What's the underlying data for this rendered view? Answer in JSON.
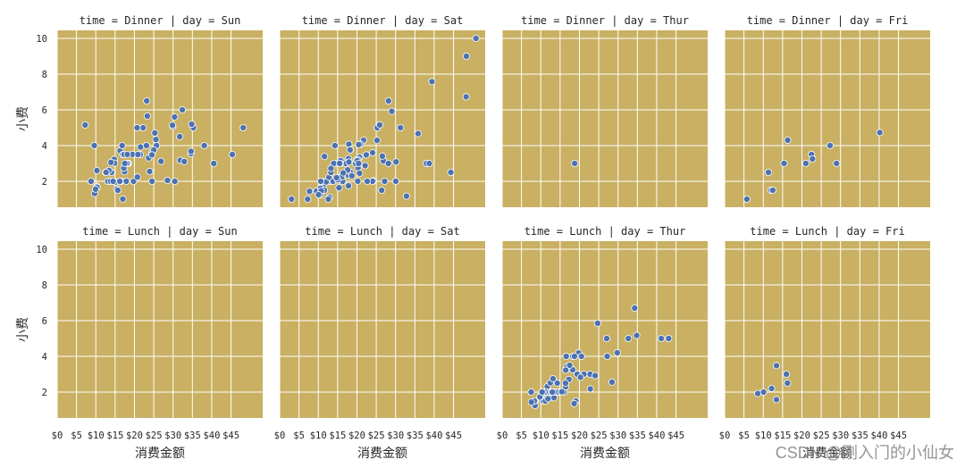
{
  "watermark": "CSDN @刚入门的小仙女",
  "chart_data": {
    "type": "scatter",
    "xlabel": "消费金额",
    "ylabel": "小费",
    "xlim": [
      0,
      53.2
    ],
    "ylim": [
      0.55,
      10.45
    ],
    "xticks": [
      0,
      5,
      10,
      15,
      20,
      25,
      30,
      35,
      40,
      45
    ],
    "xtick_labels": [
      "$0",
      "$5",
      "$10",
      "$15",
      "$20",
      "$25",
      "$30",
      "$35",
      "$40",
      "$45"
    ],
    "yticks": [
      2,
      4,
      6,
      8,
      10
    ],
    "grid": true,
    "colors": {
      "panel": "#c9b062",
      "grid": "#ffffff",
      "point": "#4c72b0",
      "point_edge": "#ffffff"
    },
    "facet_rows": [
      [
        {
          "title": "time = Dinner | day = Sun",
          "points": [
            [
              16.99,
              1.01
            ],
            [
              10.34,
              1.66
            ],
            [
              21.01,
              3.5
            ],
            [
              23.68,
              3.31
            ],
            [
              24.59,
              3.61
            ],
            [
              25.29,
              4.71
            ],
            [
              8.77,
              2.0
            ],
            [
              26.88,
              3.12
            ],
            [
              15.04,
              1.96
            ],
            [
              14.78,
              3.23
            ],
            [
              10.27,
              1.71
            ],
            [
              35.26,
              5.0
            ],
            [
              15.42,
              1.57
            ],
            [
              18.43,
              3.0
            ],
            [
              14.83,
              3.02
            ],
            [
              21.58,
              3.92
            ],
            [
              10.33,
              1.67
            ],
            [
              16.29,
              3.71
            ],
            [
              16.97,
              3.5
            ],
            [
              17.46,
              2.54
            ],
            [
              13.94,
              3.06
            ],
            [
              9.68,
              1.32
            ],
            [
              30.4,
              5.6
            ],
            [
              18.29,
              3.0
            ],
            [
              22.23,
              5.0
            ],
            [
              32.4,
              6.0
            ],
            [
              28.55,
              2.05
            ],
            [
              18.04,
              3.0
            ],
            [
              12.54,
              2.5
            ],
            [
              10.29,
              2.6
            ],
            [
              34.81,
              5.2
            ],
            [
              9.94,
              1.56
            ],
            [
              25.56,
              4.34
            ],
            [
              19.49,
              3.51
            ],
            [
              38.07,
              4.0
            ],
            [
              23.95,
              2.55
            ],
            [
              25.71,
              4.0
            ],
            [
              17.31,
              3.5
            ],
            [
              29.93,
              5.07
            ],
            [
              14.07,
              2.5
            ],
            [
              13.13,
              2.0
            ],
            [
              17.26,
              2.74
            ],
            [
              24.55,
              2.0
            ],
            [
              19.77,
              2.0
            ],
            [
              29.85,
              5.14
            ],
            [
              48.17,
              5.0
            ],
            [
              25.0,
              3.75
            ],
            [
              13.39,
              2.61
            ],
            [
              16.49,
              2.0
            ],
            [
              21.5,
              3.5
            ],
            [
              12.66,
              2.5
            ],
            [
              16.21,
              2.0
            ],
            [
              13.81,
              2.0
            ],
            [
              17.51,
              3.0
            ],
            [
              24.52,
              3.48
            ],
            [
              20.76,
              2.24
            ],
            [
              31.71,
              4.5
            ],
            [
              7.25,
              5.15
            ],
            [
              31.85,
              3.18
            ],
            [
              16.82,
              4.0
            ],
            [
              32.9,
              3.11
            ],
            [
              17.89,
              2.0
            ],
            [
              14.48,
              2.0
            ],
            [
              9.6,
              4.0
            ],
            [
              34.63,
              3.55
            ],
            [
              34.65,
              3.68
            ],
            [
              23.33,
              5.65
            ],
            [
              45.35,
              3.5
            ],
            [
              23.17,
              6.5
            ],
            [
              40.55,
              3.0
            ],
            [
              20.69,
              5.0
            ],
            [
              20.9,
              3.5
            ],
            [
              30.46,
              2.0
            ],
            [
              18.15,
              3.5
            ],
            [
              23.1,
              4.0
            ],
            [
              15.69,
              1.5
            ]
          ]
        },
        {
          "title": "time = Dinner | day = Sat",
          "points": [
            [
              20.65,
              3.35
            ],
            [
              17.92,
              4.08
            ],
            [
              20.29,
              2.75
            ],
            [
              15.77,
              2.23
            ],
            [
              39.42,
              7.58
            ],
            [
              19.82,
              3.18
            ],
            [
              17.81,
              2.34
            ],
            [
              13.37,
              2.0
            ],
            [
              12.69,
              2.0
            ],
            [
              21.7,
              4.3
            ],
            [
              19.65,
              3.0
            ],
            [
              9.55,
              1.45
            ],
            [
              18.35,
              2.5
            ],
            [
              15.06,
              3.0
            ],
            [
              20.69,
              2.45
            ],
            [
              17.78,
              3.27
            ],
            [
              24.06,
              3.6
            ],
            [
              16.31,
              2.0
            ],
            [
              16.93,
              3.07
            ],
            [
              18.69,
              2.31
            ],
            [
              31.27,
              5.0
            ],
            [
              16.04,
              2.24
            ],
            [
              38.01,
              3.0
            ],
            [
              26.41,
              1.5
            ],
            [
              11.24,
              1.76
            ],
            [
              48.27,
              6.73
            ],
            [
              20.29,
              3.21
            ],
            [
              13.81,
              2.0
            ],
            [
              11.02,
              1.98
            ],
            [
              18.29,
              3.76
            ],
            [
              17.59,
              2.64
            ],
            [
              20.08,
              3.15
            ],
            [
              16.45,
              2.47
            ],
            [
              3.07,
              1.0
            ],
            [
              20.23,
              2.01
            ],
            [
              15.01,
              2.09
            ],
            [
              12.02,
              1.97
            ],
            [
              17.07,
              3.0
            ],
            [
              26.86,
              3.14
            ],
            [
              25.28,
              5.0
            ],
            [
              14.73,
              2.2
            ],
            [
              10.51,
              1.25
            ],
            [
              17.92,
              3.08
            ],
            [
              44.3,
              2.5
            ],
            [
              22.42,
              3.48
            ],
            [
              20.92,
              4.08
            ],
            [
              15.36,
              1.64
            ],
            [
              20.49,
              4.06
            ],
            [
              25.21,
              4.29
            ],
            [
              18.24,
              3.76
            ],
            [
              14.31,
              4.0
            ],
            [
              14.0,
              3.0
            ],
            [
              7.25,
              1.0
            ],
            [
              10.59,
              1.61
            ],
            [
              10.63,
              2.0
            ],
            [
              50.81,
              10.0
            ],
            [
              15.81,
              3.16
            ],
            [
              26.59,
              3.41
            ],
            [
              38.73,
              3.0
            ],
            [
              24.27,
              2.03
            ],
            [
              12.76,
              2.23
            ],
            [
              30.06,
              2.0
            ],
            [
              25.89,
              5.16
            ],
            [
              48.33,
              9.0
            ],
            [
              13.27,
              2.5
            ],
            [
              28.17,
              6.5
            ],
            [
              12.9,
              1.1
            ],
            [
              28.15,
              3.0
            ],
            [
              11.59,
              1.5
            ],
            [
              7.74,
              1.44
            ],
            [
              30.14,
              3.09
            ],
            [
              20.45,
              3.0
            ],
            [
              13.28,
              2.72
            ],
            [
              22.12,
              2.88
            ],
            [
              24.01,
              2.0
            ],
            [
              15.69,
              3.0
            ],
            [
              11.61,
              3.39
            ],
            [
              10.77,
              1.47
            ],
            [
              15.53,
              3.0
            ],
            [
              10.07,
              1.25
            ],
            [
              12.6,
              1.0
            ],
            [
              32.83,
              1.17
            ],
            [
              35.83,
              4.67
            ],
            [
              29.03,
              5.92
            ],
            [
              27.18,
              2.0
            ],
            [
              22.67,
              2.0
            ],
            [
              17.82,
              1.75
            ]
          ]
        },
        {
          "title": "time = Dinner | day = Thur",
          "points": [
            [
              18.78,
              3.0
            ]
          ]
        },
        {
          "title": "time = Dinner | day = Fri",
          "points": [
            [
              28.97,
              3.0
            ],
            [
              22.49,
              3.5
            ],
            [
              5.75,
              1.0
            ],
            [
              16.32,
              4.3
            ],
            [
              22.75,
              3.25
            ],
            [
              40.17,
              4.73
            ],
            [
              27.28,
              4.0
            ],
            [
              12.03,
              1.5
            ],
            [
              21.01,
              3.0
            ],
            [
              12.46,
              1.5
            ],
            [
              11.35,
              2.5
            ],
            [
              15.38,
              3.0
            ]
          ]
        }
      ],
      [
        {
          "title": "time = Lunch | day = Sun",
          "points": []
        },
        {
          "title": "time = Lunch | day = Sat",
          "points": []
        },
        {
          "title": "time = Lunch | day = Thur",
          "points": [
            [
              27.2,
              4.0
            ],
            [
              22.76,
              3.0
            ],
            [
              17.29,
              2.71
            ],
            [
              19.44,
              3.0
            ],
            [
              16.66,
              3.4
            ],
            [
              10.07,
              1.83
            ],
            [
              32.68,
              5.0
            ],
            [
              15.98,
              2.03
            ],
            [
              34.83,
              5.17
            ],
            [
              13.03,
              2.0
            ],
            [
              18.28,
              4.0
            ],
            [
              24.71,
              5.85
            ],
            [
              21.16,
              3.0
            ],
            [
              10.65,
              1.5
            ],
            [
              12.43,
              1.8
            ],
            [
              24.08,
              2.92
            ],
            [
              11.69,
              2.31
            ],
            [
              13.42,
              1.68
            ],
            [
              14.26,
              2.5
            ],
            [
              15.95,
              2.0
            ],
            [
              12.48,
              2.52
            ],
            [
              29.8,
              4.2
            ],
            [
              8.52,
              1.48
            ],
            [
              14.52,
              2.0
            ],
            [
              11.38,
              2.0
            ],
            [
              22.82,
              2.18
            ],
            [
              19.08,
              1.5
            ],
            [
              20.27,
              2.83
            ],
            [
              11.17,
              1.5
            ],
            [
              12.26,
              2.0
            ],
            [
              18.26,
              3.25
            ],
            [
              8.51,
              1.25
            ],
            [
              10.33,
              2.0
            ],
            [
              14.15,
              2.0
            ],
            [
              16.0,
              2.0
            ],
            [
              13.16,
              2.75
            ],
            [
              17.47,
              3.5
            ],
            [
              34.3,
              6.7
            ],
            [
              41.19,
              5.0
            ],
            [
              27.05,
              5.0
            ],
            [
              16.43,
              2.3
            ],
            [
              8.35,
              1.5
            ],
            [
              18.64,
              1.36
            ],
            [
              11.87,
              1.63
            ],
            [
              9.78,
              1.73
            ],
            [
              7.51,
              2.0
            ],
            [
              19.81,
              4.19
            ],
            [
              28.44,
              2.56
            ],
            [
              15.48,
              2.02
            ],
            [
              16.58,
              4.0
            ],
            [
              7.56,
              1.44
            ],
            [
              10.34,
              2.0
            ],
            [
              43.11,
              5.0
            ],
            [
              13.0,
              2.0
            ],
            [
              13.51,
              2.0
            ],
            [
              18.71,
              4.0
            ],
            [
              12.74,
              2.01
            ],
            [
              13.0,
              2.0
            ],
            [
              16.4,
              2.5
            ],
            [
              20.53,
              4.0
            ],
            [
              16.47,
              3.23
            ]
          ]
        },
        {
          "title": "time = Lunch | day = Fri",
          "points": [
            [
              12.16,
              2.2
            ],
            [
              13.42,
              3.48
            ],
            [
              8.58,
              1.92
            ],
            [
              15.98,
              3.0
            ],
            [
              13.42,
              1.58
            ],
            [
              16.27,
              2.5
            ],
            [
              10.09,
              2.0
            ]
          ]
        }
      ]
    ]
  }
}
